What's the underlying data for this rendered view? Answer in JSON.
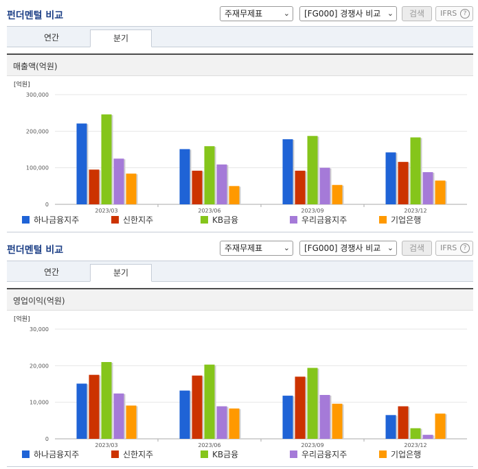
{
  "panels": [
    {
      "title": "펀더멘털 비교",
      "select1": "주재무제표",
      "select2": "[FG000] 경쟁사 비교",
      "search_label": "검색",
      "ifrs_label": "IFRS",
      "ifrs_help": "?",
      "tabs": [
        "연간",
        "분기"
      ],
      "active_tab": "분기",
      "chart_header": "매출액(억원)"
    },
    {
      "title": "펀더멘털 비교",
      "select1": "주재무제표",
      "select2": "[FG000] 경쟁사 비교",
      "search_label": "검색",
      "ifrs_label": "IFRS",
      "ifrs_help": "?",
      "tabs": [
        "연간",
        "분기"
      ],
      "active_tab": "분기",
      "chart_header": "영업이익(억원)"
    }
  ],
  "icons": {
    "select_arrow": "chevron-down-icon",
    "help": "question-circle-icon"
  },
  "colors": {
    "title": "#1c3f86",
    "series": [
      "#1f63d6",
      "#cc3300",
      "#85c51b",
      "#a57ad8",
      "#ff9900"
    ]
  },
  "chart_data": [
    {
      "type": "bar",
      "unit_label": "[억원]",
      "categories": [
        "2023/03",
        "2023/06",
        "2023/09",
        "2023/12"
      ],
      "ylim": [
        0,
        300000
      ],
      "yticks": [
        0,
        100000,
        200000,
        300000
      ],
      "ytick_labels": [
        "0",
        "100,000",
        "200,000",
        "300,000"
      ],
      "grid": true,
      "legend_position": "bottom",
      "series": [
        {
          "name": "하나금융지주",
          "values": [
            221000,
            151000,
            178000,
            142000
          ]
        },
        {
          "name": "신한지주",
          "values": [
            95000,
            92000,
            92000,
            116000
          ]
        },
        {
          "name": "KB금융",
          "values": [
            246000,
            159000,
            187000,
            183000
          ]
        },
        {
          "name": "우리금융지주",
          "values": [
            125000,
            109000,
            100000,
            88000
          ]
        },
        {
          "name": "기업은행",
          "values": [
            84000,
            50000,
            53000,
            65000
          ]
        }
      ]
    },
    {
      "type": "bar",
      "unit_label": "[억원]",
      "categories": [
        "2023/03",
        "2023/06",
        "2023/09",
        "2023/12"
      ],
      "ylim": [
        0,
        30000
      ],
      "yticks": [
        0,
        10000,
        20000,
        30000
      ],
      "ytick_labels": [
        "0",
        "10,000",
        "20,000",
        "30,000"
      ],
      "grid": true,
      "legend_position": "bottom",
      "series": [
        {
          "name": "하나금융지주",
          "values": [
            15100,
            13200,
            11800,
            6500
          ]
        },
        {
          "name": "신한지주",
          "values": [
            17500,
            17300,
            17000,
            8900
          ]
        },
        {
          "name": "KB금융",
          "values": [
            21000,
            20300,
            19400,
            2900
          ]
        },
        {
          "name": "우리금융지주",
          "values": [
            12400,
            8900,
            12000,
            1100
          ]
        },
        {
          "name": "기업은행",
          "values": [
            9100,
            8300,
            9600,
            6900
          ]
        }
      ]
    }
  ]
}
